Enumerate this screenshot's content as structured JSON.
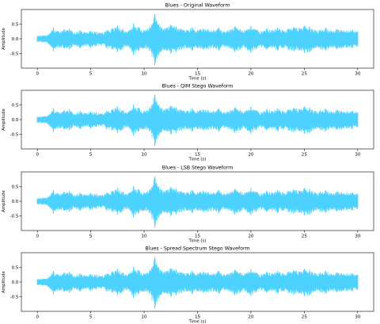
{
  "chart_data": [
    {
      "type": "line",
      "title": "Blues - Original Waveform",
      "xlabel": "Time (s)",
      "ylabel": "Amplitude",
      "xlim": [
        -1.5,
        31.5
      ],
      "ylim": [
        -1.0,
        1.0
      ],
      "xticks": [
        0,
        5,
        10,
        15,
        20,
        25,
        30
      ],
      "yticks": [
        0.5,
        0.0,
        -0.5
      ],
      "ytick_labels": [
        "0.5",
        "0.0",
        "-0.5"
      ],
      "grid": false,
      "color": "#4dd2ff",
      "series": [
        {
          "x": [
            0,
            0.5,
            1,
            1.5,
            2,
            2.5,
            3,
            3.5,
            4,
            4.5,
            5,
            5.5,
            6,
            6.5,
            7,
            7.5,
            8,
            8.5,
            9,
            9.5,
            10,
            10.5,
            11,
            11.5,
            12,
            12.5,
            13,
            13.5,
            14,
            14.5,
            15,
            15.5,
            16,
            16.5,
            17,
            17.5,
            18,
            18.5,
            19,
            19.5,
            20,
            20.5,
            21,
            21.5,
            22,
            22.5,
            23,
            23.5,
            24,
            24.5,
            25,
            25.5,
            26,
            26.5,
            27,
            27.5,
            28,
            28.5,
            29,
            29.5,
            30
          ],
          "upper": [
            0.1,
            0.12,
            0.15,
            0.38,
            0.25,
            0.32,
            0.35,
            0.2,
            0.3,
            0.22,
            0.28,
            0.25,
            0.2,
            0.3,
            0.35,
            0.45,
            0.32,
            0.25,
            0.52,
            0.4,
            0.3,
            0.38,
            0.85,
            0.42,
            0.36,
            0.48,
            0.42,
            0.33,
            0.3,
            0.38,
            0.3,
            0.35,
            0.32,
            0.3,
            0.38,
            0.25,
            0.3,
            0.42,
            0.33,
            0.3,
            0.45,
            0.32,
            0.26,
            0.35,
            0.3,
            0.38,
            0.3,
            0.35,
            0.4,
            0.36,
            0.45,
            0.42,
            0.3,
            0.32,
            0.38,
            0.28,
            0.33,
            0.3,
            0.28,
            0.3,
            0.25
          ],
          "lower": [
            -0.1,
            -0.12,
            -0.15,
            -0.42,
            -0.28,
            -0.32,
            -0.36,
            -0.22,
            -0.32,
            -0.22,
            -0.3,
            -0.25,
            -0.22,
            -0.32,
            -0.36,
            -0.45,
            -0.35,
            -0.26,
            -0.55,
            -0.42,
            -0.32,
            -0.4,
            -0.9,
            -0.45,
            -0.38,
            -0.5,
            -0.45,
            -0.36,
            -0.32,
            -0.4,
            -0.32,
            -0.36,
            -0.35,
            -0.32,
            -0.4,
            -0.28,
            -0.32,
            -0.45,
            -0.35,
            -0.32,
            -0.48,
            -0.35,
            -0.28,
            -0.36,
            -0.32,
            -0.4,
            -0.32,
            -0.38,
            -0.42,
            -0.38,
            -0.48,
            -0.45,
            -0.32,
            -0.35,
            -0.4,
            -0.3,
            -0.35,
            -0.32,
            -0.3,
            -0.32,
            -0.26
          ]
        }
      ]
    },
    {
      "type": "line",
      "title": "Blues - QIM Stego Waveform",
      "xlabel": "Time (s)",
      "ylabel": "Amplitude",
      "xlim": [
        -1.5,
        31.5
      ],
      "ylim": [
        -1.0,
        1.0
      ],
      "xticks": [
        0,
        5,
        10,
        15,
        20,
        25,
        30
      ],
      "yticks": [
        0.5,
        0.0,
        -0.5
      ],
      "ytick_labels": [
        "0.5",
        "0.0",
        "-0.5"
      ],
      "grid": false,
      "color": "#4dd2ff",
      "series": [
        {
          "x": [
            0,
            0.5,
            1,
            1.5,
            2,
            2.5,
            3,
            3.5,
            4,
            4.5,
            5,
            5.5,
            6,
            6.5,
            7,
            7.5,
            8,
            8.5,
            9,
            9.5,
            10,
            10.5,
            11,
            11.5,
            12,
            12.5,
            13,
            13.5,
            14,
            14.5,
            15,
            15.5,
            16,
            16.5,
            17,
            17.5,
            18,
            18.5,
            19,
            19.5,
            20,
            20.5,
            21,
            21.5,
            22,
            22.5,
            23,
            23.5,
            24,
            24.5,
            25,
            25.5,
            26,
            26.5,
            27,
            27.5,
            28,
            28.5,
            29,
            29.5,
            30
          ],
          "upper": [
            0.1,
            0.12,
            0.15,
            0.38,
            0.25,
            0.32,
            0.35,
            0.2,
            0.3,
            0.22,
            0.28,
            0.25,
            0.2,
            0.3,
            0.35,
            0.45,
            0.32,
            0.25,
            0.52,
            0.4,
            0.3,
            0.38,
            0.85,
            0.42,
            0.36,
            0.48,
            0.42,
            0.33,
            0.3,
            0.38,
            0.3,
            0.35,
            0.32,
            0.3,
            0.38,
            0.25,
            0.3,
            0.42,
            0.33,
            0.3,
            0.45,
            0.32,
            0.26,
            0.35,
            0.3,
            0.38,
            0.3,
            0.35,
            0.4,
            0.36,
            0.45,
            0.42,
            0.3,
            0.32,
            0.38,
            0.28,
            0.33,
            0.3,
            0.28,
            0.3,
            0.25
          ],
          "lower": [
            -0.1,
            -0.12,
            -0.15,
            -0.42,
            -0.28,
            -0.32,
            -0.36,
            -0.22,
            -0.32,
            -0.22,
            -0.3,
            -0.25,
            -0.22,
            -0.32,
            -0.36,
            -0.45,
            -0.35,
            -0.26,
            -0.55,
            -0.42,
            -0.32,
            -0.4,
            -0.9,
            -0.45,
            -0.38,
            -0.5,
            -0.45,
            -0.36,
            -0.32,
            -0.4,
            -0.32,
            -0.36,
            -0.35,
            -0.32,
            -0.4,
            -0.28,
            -0.32,
            -0.45,
            -0.35,
            -0.32,
            -0.48,
            -0.35,
            -0.28,
            -0.36,
            -0.32,
            -0.4,
            -0.32,
            -0.38,
            -0.42,
            -0.38,
            -0.48,
            -0.45,
            -0.32,
            -0.35,
            -0.4,
            -0.3,
            -0.35,
            -0.32,
            -0.3,
            -0.32,
            -0.26
          ]
        }
      ]
    },
    {
      "type": "line",
      "title": "Blues - LSB Stego Waveform",
      "xlabel": "Time (s)",
      "ylabel": "Amplitude",
      "xlim": [
        -1.5,
        31.5
      ],
      "ylim": [
        -1.0,
        1.0
      ],
      "xticks": [
        0,
        5,
        10,
        15,
        20,
        25,
        30
      ],
      "yticks": [
        0.5,
        0.0,
        -0.5
      ],
      "ytick_labels": [
        "0.5",
        "0.0",
        "-0.5"
      ],
      "grid": false,
      "color": "#4dd2ff",
      "series": [
        {
          "x": [
            0,
            0.5,
            1,
            1.5,
            2,
            2.5,
            3,
            3.5,
            4,
            4.5,
            5,
            5.5,
            6,
            6.5,
            7,
            7.5,
            8,
            8.5,
            9,
            9.5,
            10,
            10.5,
            11,
            11.5,
            12,
            12.5,
            13,
            13.5,
            14,
            14.5,
            15,
            15.5,
            16,
            16.5,
            17,
            17.5,
            18,
            18.5,
            19,
            19.5,
            20,
            20.5,
            21,
            21.5,
            22,
            22.5,
            23,
            23.5,
            24,
            24.5,
            25,
            25.5,
            26,
            26.5,
            27,
            27.5,
            28,
            28.5,
            29,
            29.5,
            30
          ],
          "upper": [
            0.1,
            0.12,
            0.15,
            0.38,
            0.25,
            0.32,
            0.35,
            0.2,
            0.3,
            0.22,
            0.28,
            0.25,
            0.2,
            0.3,
            0.35,
            0.45,
            0.32,
            0.25,
            0.52,
            0.4,
            0.3,
            0.38,
            0.85,
            0.42,
            0.36,
            0.48,
            0.42,
            0.33,
            0.3,
            0.38,
            0.3,
            0.35,
            0.32,
            0.3,
            0.38,
            0.25,
            0.3,
            0.42,
            0.33,
            0.3,
            0.45,
            0.32,
            0.26,
            0.35,
            0.3,
            0.38,
            0.3,
            0.35,
            0.4,
            0.36,
            0.45,
            0.42,
            0.3,
            0.32,
            0.38,
            0.28,
            0.33,
            0.3,
            0.28,
            0.3,
            0.25
          ],
          "lower": [
            -0.1,
            -0.12,
            -0.15,
            -0.42,
            -0.28,
            -0.32,
            -0.36,
            -0.22,
            -0.32,
            -0.22,
            -0.3,
            -0.25,
            -0.22,
            -0.32,
            -0.36,
            -0.45,
            -0.35,
            -0.26,
            -0.55,
            -0.42,
            -0.32,
            -0.4,
            -0.9,
            -0.45,
            -0.38,
            -0.5,
            -0.45,
            -0.36,
            -0.32,
            -0.4,
            -0.32,
            -0.36,
            -0.35,
            -0.32,
            -0.4,
            -0.28,
            -0.32,
            -0.45,
            -0.35,
            -0.32,
            -0.48,
            -0.35,
            -0.28,
            -0.36,
            -0.32,
            -0.4,
            -0.32,
            -0.38,
            -0.42,
            -0.38,
            -0.48,
            -0.45,
            -0.32,
            -0.35,
            -0.4,
            -0.3,
            -0.35,
            -0.32,
            -0.3,
            -0.32,
            -0.26
          ]
        }
      ]
    },
    {
      "type": "line",
      "title": "Blues - Spread Spectrum Stego Waveform",
      "xlabel": "Time (s)",
      "ylabel": "Amplitude",
      "xlim": [
        -1.5,
        31.5
      ],
      "ylim": [
        -1.0,
        1.0
      ],
      "xticks": [
        0,
        5,
        10,
        15,
        20,
        25,
        30
      ],
      "yticks": [
        0.5,
        0.0,
        -0.5
      ],
      "ytick_labels": [
        "0.5",
        "0.0",
        "-0.5"
      ],
      "grid": false,
      "color": "#4dd2ff",
      "series": [
        {
          "x": [
            0,
            0.5,
            1,
            1.5,
            2,
            2.5,
            3,
            3.5,
            4,
            4.5,
            5,
            5.5,
            6,
            6.5,
            7,
            7.5,
            8,
            8.5,
            9,
            9.5,
            10,
            10.5,
            11,
            11.5,
            12,
            12.5,
            13,
            13.5,
            14,
            14.5,
            15,
            15.5,
            16,
            16.5,
            17,
            17.5,
            18,
            18.5,
            19,
            19.5,
            20,
            20.5,
            21,
            21.5,
            22,
            22.5,
            23,
            23.5,
            24,
            24.5,
            25,
            25.5,
            26,
            26.5,
            27,
            27.5,
            28,
            28.5,
            29,
            29.5,
            30
          ],
          "upper": [
            0.1,
            0.12,
            0.15,
            0.38,
            0.25,
            0.32,
            0.35,
            0.2,
            0.3,
            0.22,
            0.28,
            0.25,
            0.2,
            0.3,
            0.35,
            0.45,
            0.32,
            0.25,
            0.52,
            0.4,
            0.3,
            0.38,
            0.85,
            0.42,
            0.36,
            0.48,
            0.42,
            0.33,
            0.3,
            0.38,
            0.3,
            0.35,
            0.32,
            0.3,
            0.38,
            0.25,
            0.3,
            0.42,
            0.33,
            0.3,
            0.45,
            0.32,
            0.26,
            0.35,
            0.3,
            0.38,
            0.3,
            0.35,
            0.4,
            0.36,
            0.45,
            0.42,
            0.3,
            0.32,
            0.38,
            0.28,
            0.33,
            0.3,
            0.28,
            0.3,
            0.25
          ],
          "lower": [
            -0.1,
            -0.12,
            -0.15,
            -0.42,
            -0.28,
            -0.32,
            -0.36,
            -0.22,
            -0.32,
            -0.22,
            -0.3,
            -0.25,
            -0.22,
            -0.32,
            -0.36,
            -0.45,
            -0.35,
            -0.26,
            -0.55,
            -0.42,
            -0.32,
            -0.4,
            -0.9,
            -0.45,
            -0.38,
            -0.5,
            -0.45,
            -0.36,
            -0.32,
            -0.4,
            -0.32,
            -0.36,
            -0.35,
            -0.32,
            -0.4,
            -0.28,
            -0.32,
            -0.45,
            -0.35,
            -0.32,
            -0.48,
            -0.35,
            -0.28,
            -0.36,
            -0.32,
            -0.4,
            -0.32,
            -0.38,
            -0.42,
            -0.38,
            -0.48,
            -0.45,
            -0.32,
            -0.35,
            -0.4,
            -0.3,
            -0.35,
            -0.32,
            -0.3,
            -0.32,
            -0.26
          ]
        }
      ]
    }
  ]
}
